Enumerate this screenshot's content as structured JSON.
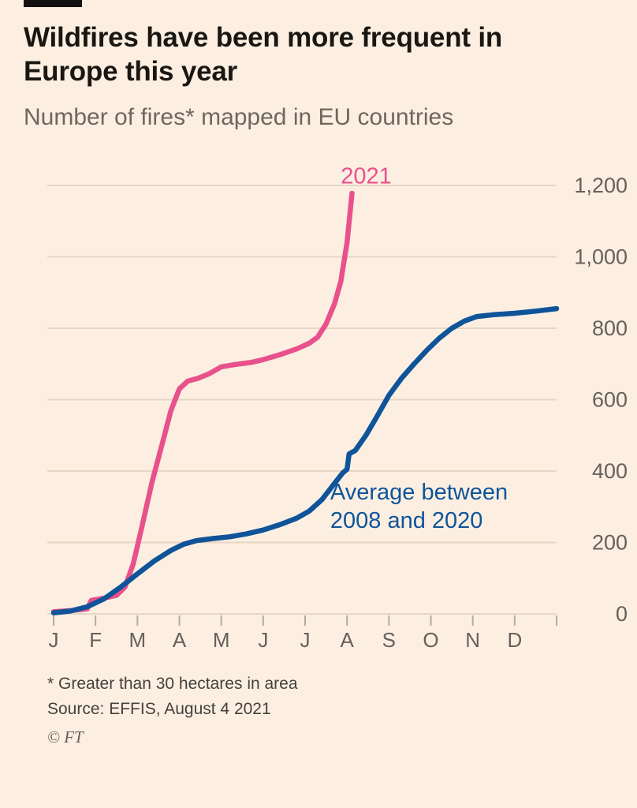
{
  "header": {
    "title": "Wildfires have been more frequent in Europe this year",
    "subtitle": "Number of fires* mapped in EU countries"
  },
  "chart_data": {
    "type": "line",
    "title": "Wildfires have been more frequent in Europe this year",
    "subtitle": "Number of fires* mapped in EU countries",
    "grid": "horizontal",
    "legend": "inline-labels",
    "x_axis": {
      "unit": "month",
      "tick_labels": [
        "J",
        "F",
        "M",
        "A",
        "M",
        "J",
        "J",
        "A",
        "S",
        "O",
        "N",
        "D"
      ],
      "range": [
        0,
        12
      ]
    },
    "y_axis": {
      "ticks": [
        0,
        200,
        400,
        600,
        800,
        1000,
        1200
      ],
      "tick_labels": [
        "0",
        "200",
        "400",
        "600",
        "800",
        "1,000",
        "1,200"
      ],
      "range": [
        0,
        1200
      ],
      "position": "right"
    },
    "series": [
      {
        "name": "2021",
        "color": "#e9518c",
        "label_lines": [
          "2021"
        ],
        "label_anchor": {
          "x": 6.85,
          "value": 1205
        },
        "x": [
          0,
          0.4,
          0.8,
          0.9,
          1.2,
          1.5,
          1.7,
          1.9,
          2.1,
          2.35,
          2.6,
          2.8,
          3.0,
          3.2,
          3.45,
          3.7,
          4.0,
          4.3,
          4.7,
          5.0,
          5.4,
          5.8,
          6.1,
          6.3,
          6.5,
          6.7,
          6.85,
          7.0,
          7.12
        ],
        "values": [
          6,
          9,
          14,
          38,
          44,
          52,
          75,
          140,
          240,
          370,
          480,
          570,
          630,
          652,
          660,
          672,
          692,
          698,
          704,
          712,
          726,
          742,
          758,
          775,
          812,
          868,
          930,
          1040,
          1178
        ]
      },
      {
        "name": "Average between 2008 and 2020",
        "color": "#0f5499",
        "label_lines": [
          "Average between",
          "2008 and 2020"
        ],
        "label_anchor": {
          "x": 6.6,
          "value": 320
        },
        "x": [
          0,
          0.4,
          0.8,
          1.2,
          1.6,
          2.0,
          2.4,
          2.8,
          3.1,
          3.4,
          3.8,
          4.2,
          4.6,
          5.0,
          5.4,
          5.8,
          6.1,
          6.4,
          6.7,
          6.9,
          7.0,
          7.05,
          7.2,
          7.45,
          7.7,
          8.0,
          8.3,
          8.6,
          8.9,
          9.2,
          9.5,
          9.8,
          10.1,
          10.5,
          11.0,
          11.5,
          12.0
        ],
        "values": [
          3,
          8,
          20,
          42,
          75,
          112,
          148,
          178,
          195,
          205,
          211,
          216,
          224,
          235,
          250,
          268,
          288,
          320,
          365,
          395,
          405,
          448,
          458,
          500,
          550,
          612,
          660,
          700,
          738,
          772,
          800,
          820,
          833,
          838,
          842,
          848,
          855
        ]
      }
    ],
    "colors": {
      "background": "#fcefe2",
      "gridline": "#e7d6c4",
      "tick": "#b3aaa1",
      "axis_text": "#66605c"
    }
  },
  "footer": {
    "footnote": "* Greater than 30 hectares in area",
    "source": "Source: EFFIS, August 4 2021",
    "copyright": "© FT"
  }
}
